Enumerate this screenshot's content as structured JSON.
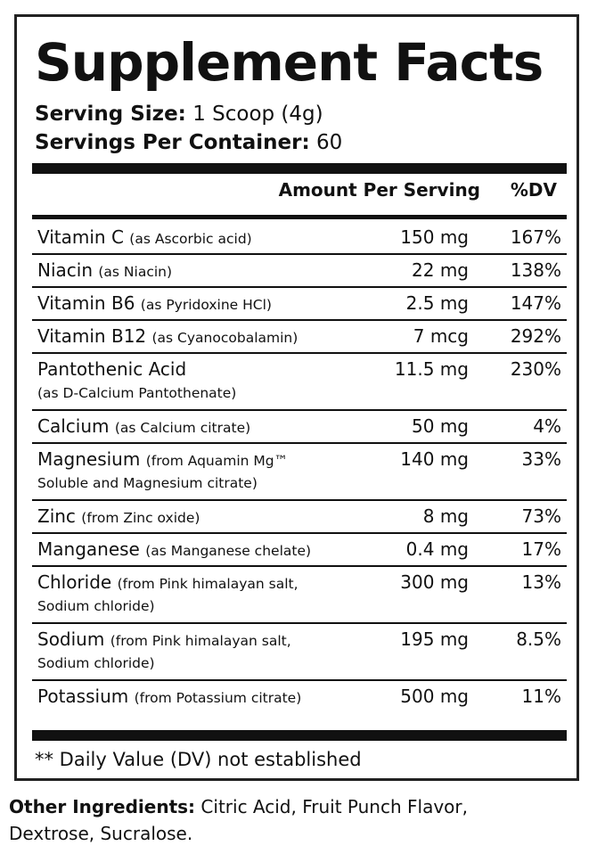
{
  "title": "Supplement Facts",
  "serving_size_label": "Serving Size:",
  "serving_size_value": "1 Scoop (4g)",
  "servings_per_container_label": "Servings Per Container:",
  "servings_per_container_value": "60",
  "header_amount": "Amount Per Serving",
  "header_dv": "%DV",
  "nutrients": [
    {
      "name": "Vitamin C",
      "source": "(as Ascorbic acid)",
      "source2": "",
      "amount": "150 mg",
      "dv": "167%"
    },
    {
      "name": "Niacin",
      "source": "(as Niacin)",
      "source2": "",
      "amount": "22 mg",
      "dv": "138%"
    },
    {
      "name": "Vitamin B6",
      "source": "(as Pyridoxine HCl)",
      "source2": "",
      "amount": "2.5 mg",
      "dv": "147%"
    },
    {
      "name": "Vitamin B12",
      "source": "(as Cyanocobalamin)",
      "source2": "",
      "amount": "7 mcg",
      "dv": "292%"
    },
    {
      "name": "Pantothenic Acid",
      "source": "",
      "source2": "(as D-Calcium Pantothenate)",
      "amount": "11.5 mg",
      "dv": "230%"
    },
    {
      "name": "Calcium",
      "source": "(as Calcium citrate)",
      "source2": "",
      "amount": "50 mg",
      "dv": "4%"
    },
    {
      "name": "Magnesium",
      "source": "(from Aquamin Mg™",
      "source2": "Soluble and Magnesium citrate)",
      "amount": "140 mg",
      "dv": "33%"
    },
    {
      "name": "Zinc",
      "source": "(from Zinc oxide)",
      "source2": "",
      "amount": "8 mg",
      "dv": "73%"
    },
    {
      "name": "Manganese",
      "source": "(as Manganese chelate)",
      "source2": "",
      "amount": "0.4 mg",
      "dv": "17%"
    },
    {
      "name": "Chloride",
      "source": "(from Pink himalayan salt,",
      "source2": "Sodium chloride)",
      "amount": "300 mg",
      "dv": "13%"
    },
    {
      "name": "Sodium",
      "source": "(from Pink himalayan salt,",
      "source2": "Sodium chloride)",
      "amount": "195 mg",
      "dv": "8.5%"
    },
    {
      "name": "Potassium",
      "source": "(from Potassium citrate)",
      "source2": "",
      "amount": "500 mg",
      "dv": "11%"
    }
  ],
  "footnote": "** Daily Value (DV) not established",
  "other_ingredients_label": "Other Ingredients:",
  "other_ingredients_line1": "Citric Acid, Fruit Punch Flavor,",
  "other_ingredients_line2": "Dextrose, Sucralose."
}
